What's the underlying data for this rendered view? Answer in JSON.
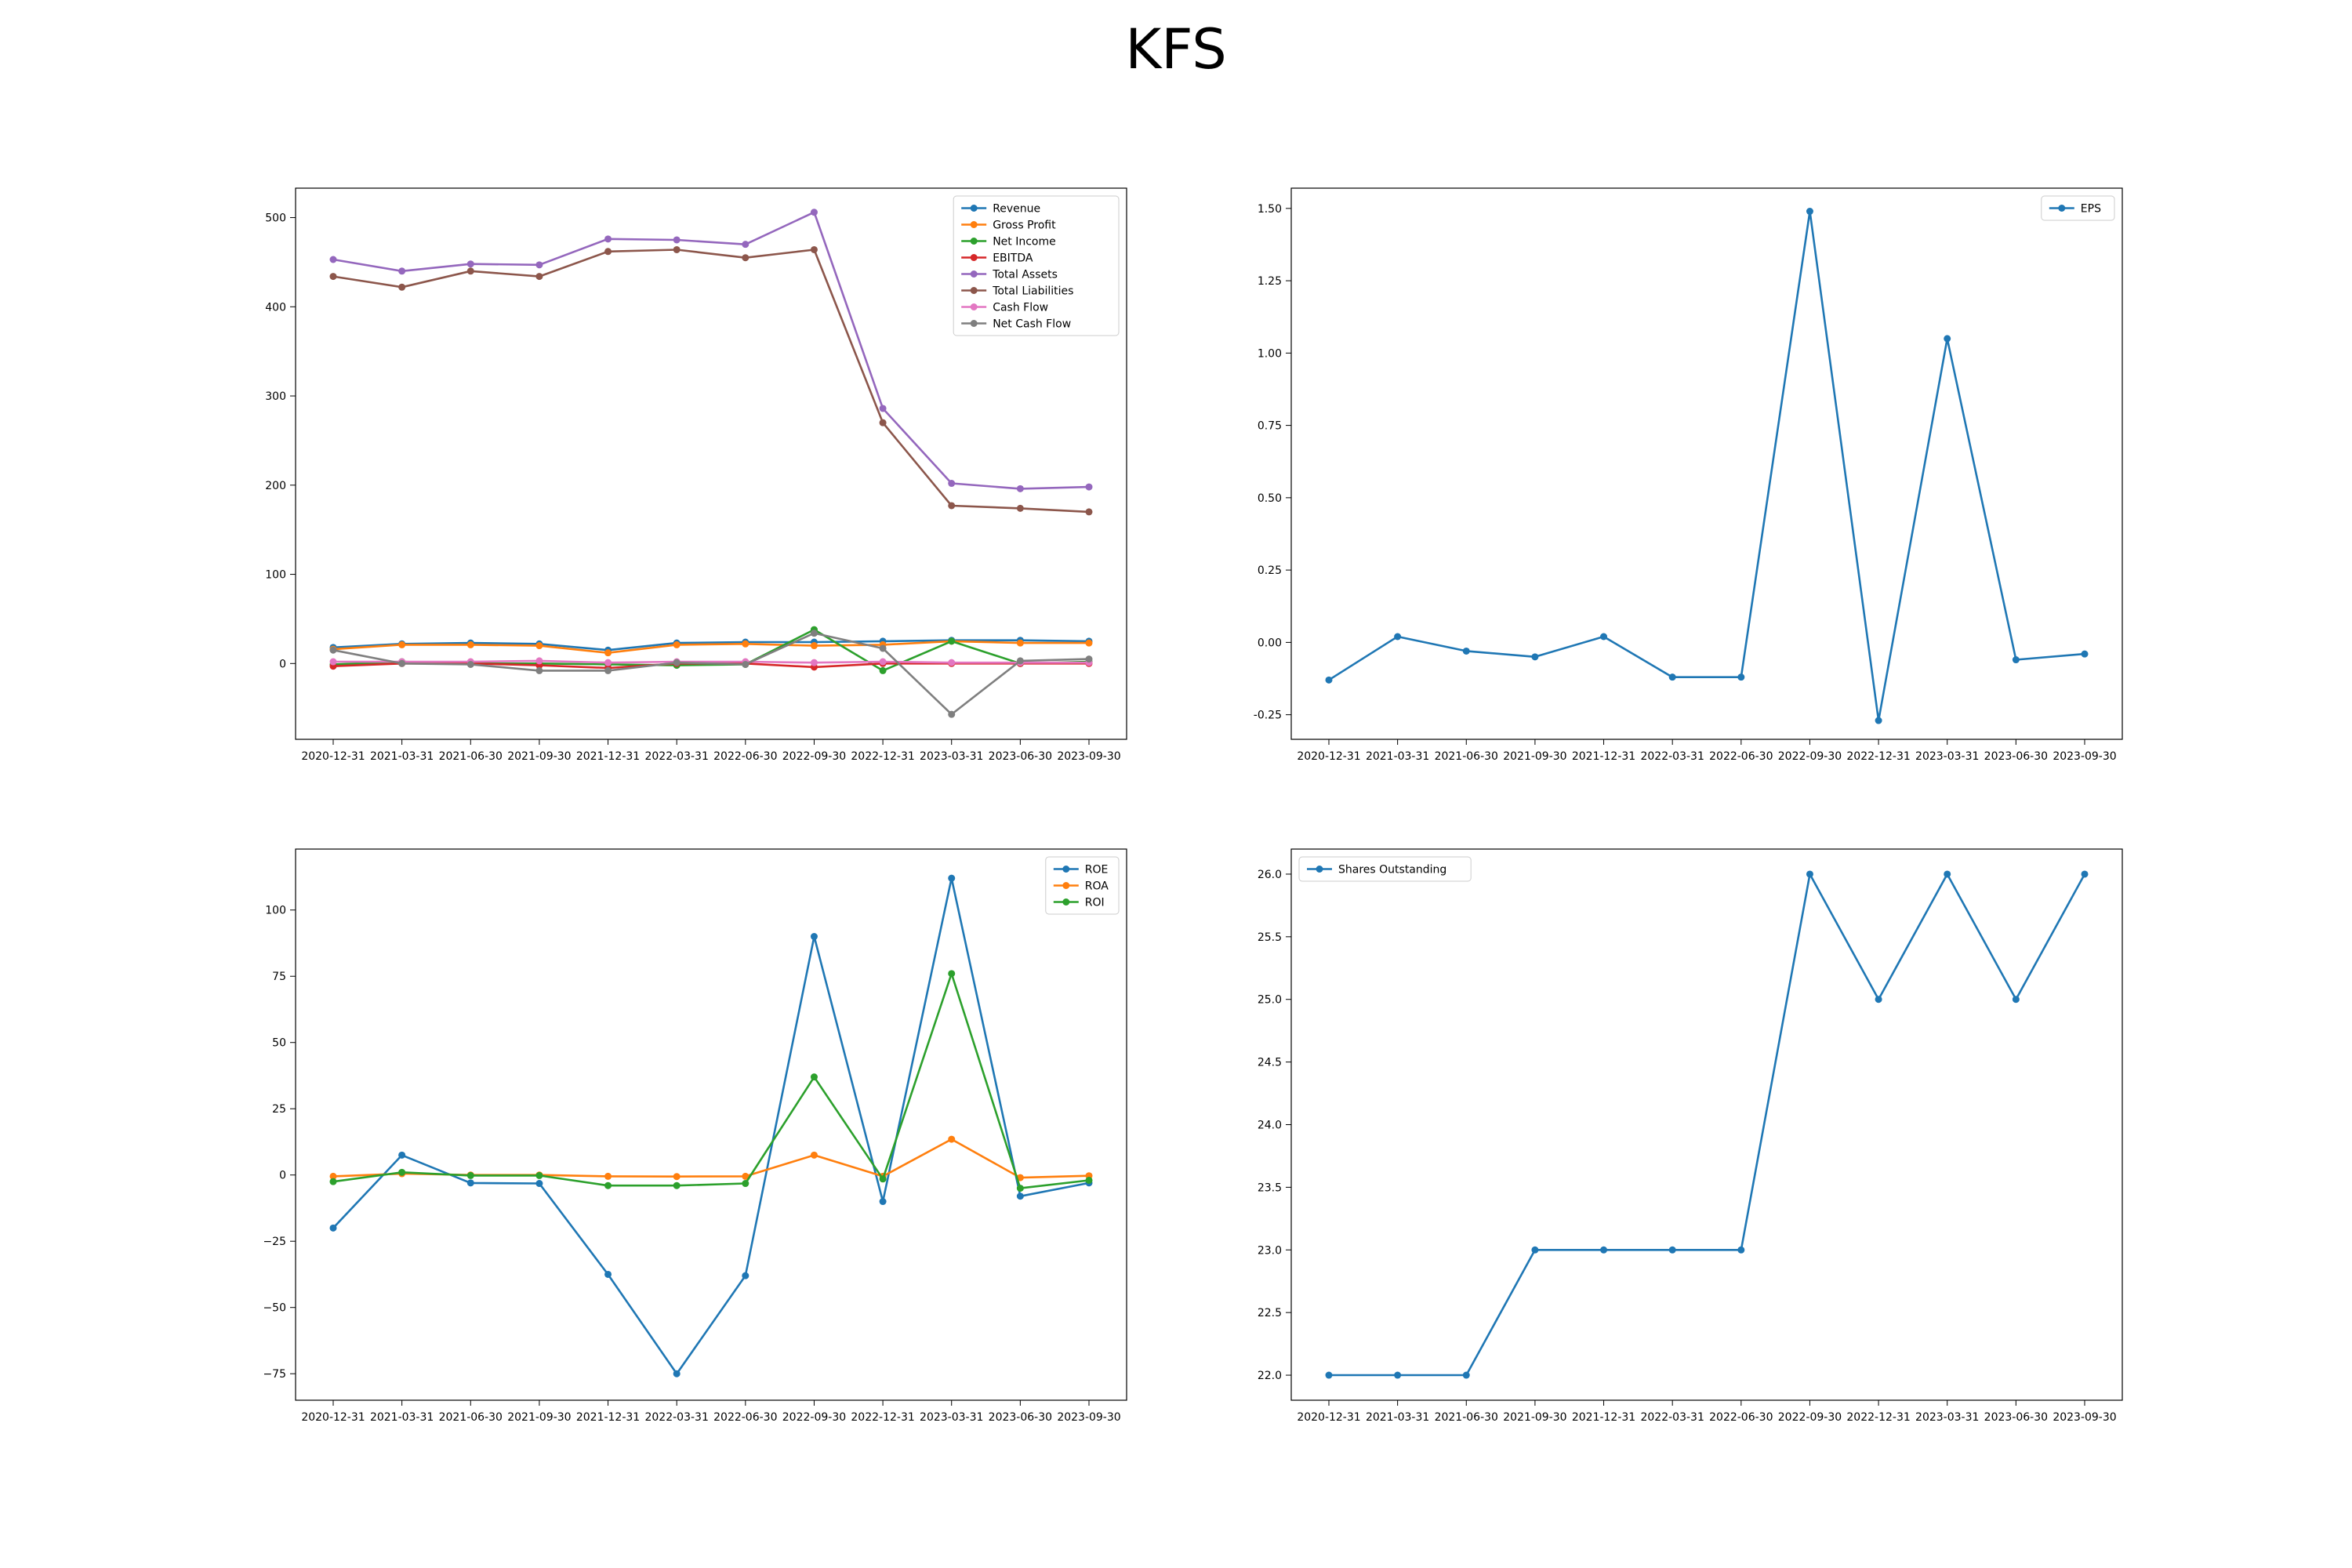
{
  "figure": {
    "title": "KFS"
  },
  "chart_data": [
    {
      "type": "line",
      "legend": "top-right",
      "x": [
        "2020-12-31",
        "2021-03-31",
        "2021-06-30",
        "2021-09-30",
        "2021-12-31",
        "2022-03-31",
        "2022-06-30",
        "2022-09-30",
        "2022-12-31",
        "2023-03-31",
        "2023-06-30",
        "2023-09-30"
      ],
      "ylim": [
        -85,
        533
      ],
      "yticks": [
        0,
        100,
        200,
        300,
        400,
        500
      ],
      "ytick_labels": [
        "0",
        "100",
        "200",
        "300",
        "400",
        "500"
      ],
      "grid": false,
      "series": [
        {
          "name": "Revenue",
          "color": "#1f77b4",
          "values": [
            18,
            22,
            23,
            22,
            15,
            23,
            24,
            24,
            25,
            26,
            26,
            25
          ]
        },
        {
          "name": "Gross Profit",
          "color": "#ff7f0e",
          "values": [
            16,
            21,
            21,
            20,
            12,
            21,
            22,
            20,
            21,
            25,
            23,
            23
          ]
        },
        {
          "name": "Net Income",
          "color": "#2ca02c",
          "values": [
            -1,
            2,
            0,
            0,
            -1,
            -2,
            -1,
            38,
            -8,
            25,
            0,
            2
          ]
        },
        {
          "name": "EBITDA",
          "color": "#d62728",
          "values": [
            -3,
            0,
            0,
            -2,
            -5,
            0,
            0,
            -4,
            0,
            0,
            0,
            0
          ]
        },
        {
          "name": "Total Assets",
          "color": "#9467bd",
          "values": [
            453,
            440,
            448,
            447,
            476,
            475,
            470,
            506,
            286,
            202,
            196,
            198
          ]
        },
        {
          "name": "Total Liabilities",
          "color": "#8c564b",
          "values": [
            434,
            422,
            440,
            434,
            462,
            464,
            455,
            464,
            270,
            177,
            174,
            170
          ]
        },
        {
          "name": "Cash Flow",
          "color": "#e377c2",
          "values": [
            2,
            2,
            2,
            3,
            1,
            2,
            2,
            1,
            2,
            1,
            1,
            1
          ]
        },
        {
          "name": "Net Cash Flow",
          "color": "#7f7f7f",
          "values": [
            15,
            0,
            -1,
            -8,
            -8,
            1,
            -1,
            34,
            17,
            -57,
            3,
            5
          ]
        }
      ]
    },
    {
      "type": "line",
      "legend": "top-right",
      "x": [
        "2020-12-31",
        "2021-03-31",
        "2021-06-30",
        "2021-09-30",
        "2021-12-31",
        "2022-03-31",
        "2022-06-30",
        "2022-09-30",
        "2022-12-31",
        "2023-03-31",
        "2023-06-30",
        "2023-09-30"
      ],
      "ylim": [
        -0.335,
        1.57
      ],
      "yticks": [
        -0.25,
        0,
        0.25,
        0.5,
        0.75,
        1.0,
        1.25,
        1.5
      ],
      "ytick_labels": [
        "-0.25",
        "0.00",
        "0.25",
        "0.50",
        "0.75",
        "1.00",
        "1.25",
        "1.50"
      ],
      "grid": false,
      "series": [
        {
          "name": "EPS",
          "color": "#1f77b4",
          "values": [
            -0.13,
            0.02,
            -0.03,
            -0.05,
            0.02,
            -0.12,
            -0.12,
            1.49,
            -0.27,
            1.05,
            -0.06,
            -0.04
          ]
        }
      ]
    },
    {
      "type": "line",
      "legend": "top-right",
      "x": [
        "2020-12-31",
        "2021-03-31",
        "2021-06-30",
        "2021-09-30",
        "2021-12-31",
        "2022-03-31",
        "2022-06-30",
        "2022-09-30",
        "2022-12-31",
        "2023-03-31",
        "2023-06-30",
        "2023-09-30"
      ],
      "ylim": [
        -85,
        123
      ],
      "yticks": [
        -75,
        -50,
        -25,
        0,
        25,
        50,
        75,
        100
      ],
      "ytick_labels": [
        "−75",
        "−50",
        "−25",
        "0",
        "25",
        "50",
        "75",
        "100"
      ],
      "grid": false,
      "series": [
        {
          "name": "ROE",
          "color": "#1f77b4",
          "values": [
            -20,
            7.5,
            -3,
            -3.2,
            -37.5,
            -75,
            -38,
            90,
            -10,
            112,
            -8,
            -3
          ]
        },
        {
          "name": "ROA",
          "color": "#ff7f0e",
          "values": [
            -0.5,
            0.5,
            0,
            0,
            -0.5,
            -0.6,
            -0.5,
            7.5,
            -0.5,
            13.5,
            -1,
            -0.3
          ]
        },
        {
          "name": "ROI",
          "color": "#2ca02c",
          "values": [
            -2.5,
            1,
            -0.2,
            -0.2,
            -4,
            -4,
            -3.2,
            37,
            -1.5,
            76,
            -5,
            -2
          ]
        }
      ]
    },
    {
      "type": "line",
      "legend": "top-left",
      "x": [
        "2020-12-31",
        "2021-03-31",
        "2021-06-30",
        "2021-09-30",
        "2021-12-31",
        "2022-03-31",
        "2022-06-30",
        "2022-09-30",
        "2022-12-31",
        "2023-03-31",
        "2023-06-30",
        "2023-09-30"
      ],
      "ylim": [
        21.8,
        26.2
      ],
      "yticks": [
        22.0,
        22.5,
        23.0,
        23.5,
        24.0,
        24.5,
        25.0,
        25.5,
        26.0
      ],
      "ytick_labels": [
        "22.0",
        "22.5",
        "23.0",
        "23.5",
        "24.0",
        "24.5",
        "25.0",
        "25.5",
        "26.0"
      ],
      "grid": false,
      "series": [
        {
          "name": "Shares Outstanding",
          "color": "#1f77b4",
          "values": [
            22,
            22,
            22,
            23,
            23,
            23,
            23,
            26,
            25,
            26,
            25,
            26
          ]
        }
      ]
    }
  ]
}
